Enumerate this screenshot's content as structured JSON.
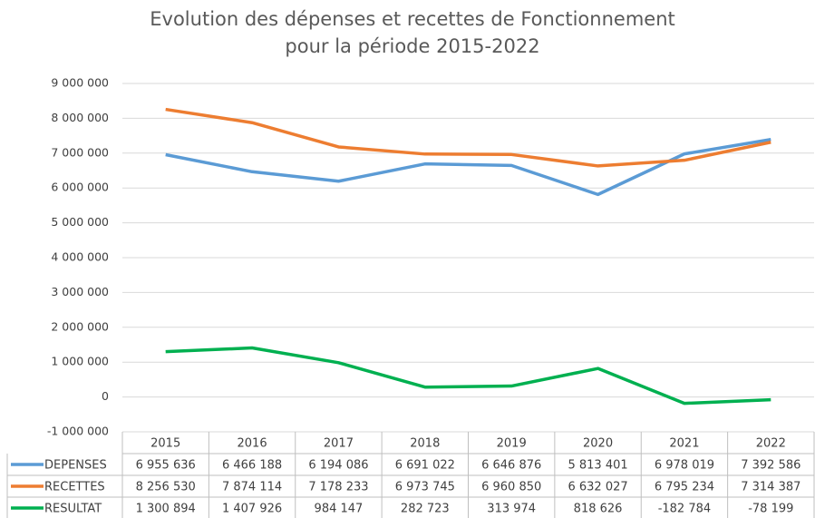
{
  "chart_data": {
    "type": "line",
    "title": [
      "Evolution des dépenses et recettes de Fonctionnement",
      "pour la période 2015-2022"
    ],
    "categories": [
      "2015",
      "2016",
      "2017",
      "2018",
      "2019",
      "2020",
      "2021",
      "2022"
    ],
    "series": [
      {
        "name": "DEPENSES",
        "color": "#5b9bd5",
        "values": [
          6955636,
          6466188,
          6194086,
          6691022,
          6646876,
          5813401,
          6978019,
          7392586
        ],
        "value_labels": [
          "6 955 636",
          "6 466 188",
          "6 194 086",
          "6 691 022",
          "6 646 876",
          "5 813 401",
          "6 978 019",
          "7 392 586"
        ]
      },
      {
        "name": "RECETTES",
        "color": "#ed7d31",
        "values": [
          8256530,
          7874114,
          7178233,
          6973745,
          6960850,
          6632027,
          6795234,
          7314387
        ],
        "value_labels": [
          "8 256 530",
          "7 874 114",
          "7 178 233",
          "6 973 745",
          "6 960 850",
          "6 632 027",
          "6 795 234",
          "7 314 387"
        ]
      },
      {
        "name": "RESULTAT",
        "color": "#00b050",
        "values": [
          1300894,
          1407926,
          984147,
          282723,
          313974,
          818626,
          -182784,
          -78199
        ],
        "value_labels": [
          "1 300 894",
          "1 407 926",
          "984 147",
          "282 723",
          "313 974",
          "818 626",
          "-182 784",
          "-78 199"
        ]
      }
    ],
    "ylim": [
      -1000000,
      9000000
    ],
    "yticks": [
      {
        "value": -1000000,
        "label": "-1 000 000"
      },
      0,
      {
        "value": 1000000,
        "label": "1 000 000"
      },
      {
        "value": 2000000,
        "label": "2 000 000"
      },
      {
        "value": 3000000,
        "label": "3 000 000"
      },
      {
        "value": 4000000,
        "label": "4 000 000"
      },
      {
        "value": 5000000,
        "label": "5 000 000"
      },
      {
        "value": 6000000,
        "label": "6 000 000"
      },
      {
        "value": 7000000,
        "label": "7 000 000"
      },
      {
        "value": 8000000,
        "label": "8 000 000"
      },
      {
        "value": 9000000,
        "label": "9 000 000"
      }
    ],
    "grid": true
  }
}
